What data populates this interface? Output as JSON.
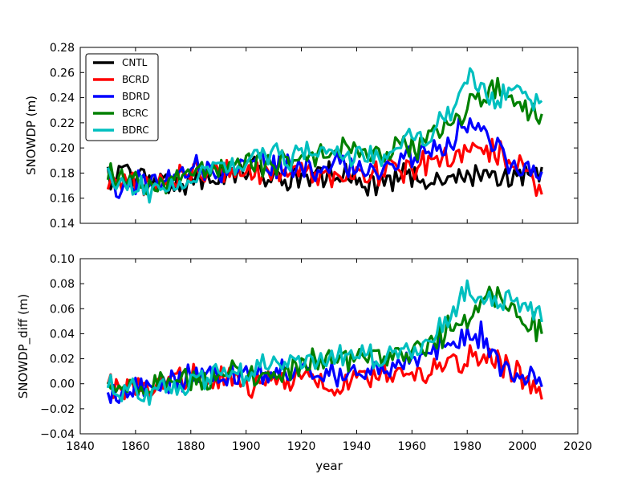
{
  "chart_data": [
    {
      "type": "line",
      "title": "",
      "xlabel": "",
      "ylabel": "SNOWDP (m)",
      "xlim": [
        1840,
        2020
      ],
      "ylim": [
        0.14,
        0.28
      ],
      "yticks": [
        "0.14",
        "0.16",
        "0.18",
        "0.20",
        "0.22",
        "0.24",
        "0.26",
        "0.28"
      ],
      "legend": {
        "placement": "top-left"
      },
      "series_names": [
        "CNTL",
        "BCRD",
        "BDRD",
        "BCRC",
        "BDRC"
      ],
      "series_colors": [
        "#000000",
        "#ff0000",
        "#0000ff",
        "#008000",
        "#00bfbf"
      ],
      "x_start": 1850,
      "x_step": 5,
      "series": [
        {
          "name": "CNTL",
          "color": "#000000",
          "values": [
            0.176,
            0.18,
            0.176,
            0.174,
            0.172,
            0.174,
            0.175,
            0.178,
            0.177,
            0.178,
            0.184,
            0.18,
            0.173,
            0.176,
            0.176,
            0.176,
            0.18,
            0.178,
            0.172,
            0.173,
            0.174,
            0.177,
            0.176,
            0.179,
            0.175,
            0.176,
            0.18,
            0.178,
            0.179,
            0.179,
            0.18,
            0.18
          ]
        },
        {
          "name": "BCRD",
          "color": "#ff0000",
          "values": [
            0.175,
            0.174,
            0.172,
            0.17,
            0.176,
            0.178,
            0.18,
            0.182,
            0.184,
            0.182,
            0.179,
            0.181,
            0.178,
            0.18,
            0.182,
            0.18,
            0.179,
            0.177,
            0.179,
            0.18,
            0.181,
            0.184,
            0.185,
            0.187,
            0.19,
            0.195,
            0.198,
            0.199,
            0.196,
            0.19,
            0.186,
            0.172
          ]
        },
        {
          "name": "BDRD",
          "color": "#0000ff",
          "values": [
            0.172,
            0.171,
            0.17,
            0.174,
            0.174,
            0.176,
            0.182,
            0.184,
            0.184,
            0.186,
            0.192,
            0.188,
            0.184,
            0.186,
            0.186,
            0.182,
            0.188,
            0.185,
            0.182,
            0.186,
            0.185,
            0.189,
            0.194,
            0.196,
            0.202,
            0.21,
            0.215,
            0.216,
            0.2,
            0.19,
            0.185,
            0.18
          ]
        },
        {
          "name": "BCRC",
          "color": "#008000",
          "values": [
            0.18,
            0.176,
            0.172,
            0.169,
            0.172,
            0.174,
            0.178,
            0.18,
            0.184,
            0.185,
            0.188,
            0.186,
            0.184,
            0.19,
            0.192,
            0.194,
            0.198,
            0.198,
            0.196,
            0.194,
            0.196,
            0.2,
            0.202,
            0.204,
            0.214,
            0.222,
            0.23,
            0.24,
            0.248,
            0.244,
            0.232,
            0.225
          ]
        },
        {
          "name": "BDRC",
          "color": "#00bfbf",
          "values": [
            0.177,
            0.173,
            0.169,
            0.166,
            0.17,
            0.172,
            0.176,
            0.18,
            0.186,
            0.188,
            0.192,
            0.196,
            0.194,
            0.19,
            0.194,
            0.196,
            0.2,
            0.198,
            0.194,
            0.196,
            0.198,
            0.204,
            0.206,
            0.208,
            0.218,
            0.235,
            0.255,
            0.25,
            0.238,
            0.25,
            0.242,
            0.236
          ]
        }
      ]
    },
    {
      "type": "line",
      "title": "",
      "xlabel": "year",
      "ylabel": "SNOWDP_diff (m)",
      "xlim": [
        1840,
        2020
      ],
      "ylim": [
        -0.04,
        0.1
      ],
      "xticks": [
        "1840",
        "1860",
        "1880",
        "1900",
        "1920",
        "1940",
        "1960",
        "1980",
        "2000",
        "2020"
      ],
      "yticks": [
        "−0.04",
        "−0.02",
        "0.00",
        "0.02",
        "0.04",
        "0.06",
        "0.08",
        "0.10"
      ],
      "x_start": 1850,
      "x_step": 5,
      "series": [
        {
          "name": "BCRD",
          "color": "#ff0000",
          "values": [
            0.0,
            -0.004,
            -0.004,
            -0.006,
            0.004,
            0.004,
            0.005,
            0.004,
            0.007,
            0.004,
            -0.005,
            0.001,
            0.005,
            0.004,
            0.006,
            0.004,
            -0.001,
            -0.001,
            0.007,
            0.007,
            0.007,
            0.007,
            0.009,
            0.008,
            0.015,
            0.019,
            0.018,
            0.021,
            0.017,
            0.011,
            0.006,
            -0.008
          ]
        },
        {
          "name": "BDRD",
          "color": "#0000ff",
          "values": [
            -0.004,
            -0.009,
            -0.006,
            0.0,
            0.002,
            0.002,
            0.007,
            0.006,
            0.007,
            0.008,
            0.008,
            0.008,
            0.011,
            0.01,
            0.01,
            0.006,
            0.008,
            0.007,
            0.01,
            0.013,
            0.011,
            0.012,
            0.018,
            0.017,
            0.027,
            0.034,
            0.035,
            0.038,
            0.021,
            0.011,
            0.005,
            0.0
          ]
        },
        {
          "name": "BCRC",
          "color": "#008000",
          "values": [
            0.004,
            -0.004,
            -0.004,
            -0.005,
            0.0,
            0.0,
            0.003,
            0.002,
            0.007,
            0.007,
            0.004,
            0.006,
            0.011,
            0.014,
            0.016,
            0.018,
            0.018,
            0.02,
            0.024,
            0.021,
            0.022,
            0.023,
            0.026,
            0.025,
            0.039,
            0.046,
            0.05,
            0.062,
            0.069,
            0.065,
            0.052,
            0.045
          ]
        },
        {
          "name": "BDRC",
          "color": "#00bfbf",
          "values": [
            0.001,
            -0.007,
            -0.007,
            -0.008,
            -0.002,
            -0.002,
            0.001,
            0.002,
            0.009,
            0.01,
            0.008,
            0.016,
            0.021,
            0.014,
            0.018,
            0.02,
            0.02,
            0.02,
            0.022,
            0.023,
            0.024,
            0.027,
            0.03,
            0.029,
            0.043,
            0.059,
            0.075,
            0.072,
            0.059,
            0.071,
            0.062,
            0.056
          ]
        }
      ]
    }
  ]
}
